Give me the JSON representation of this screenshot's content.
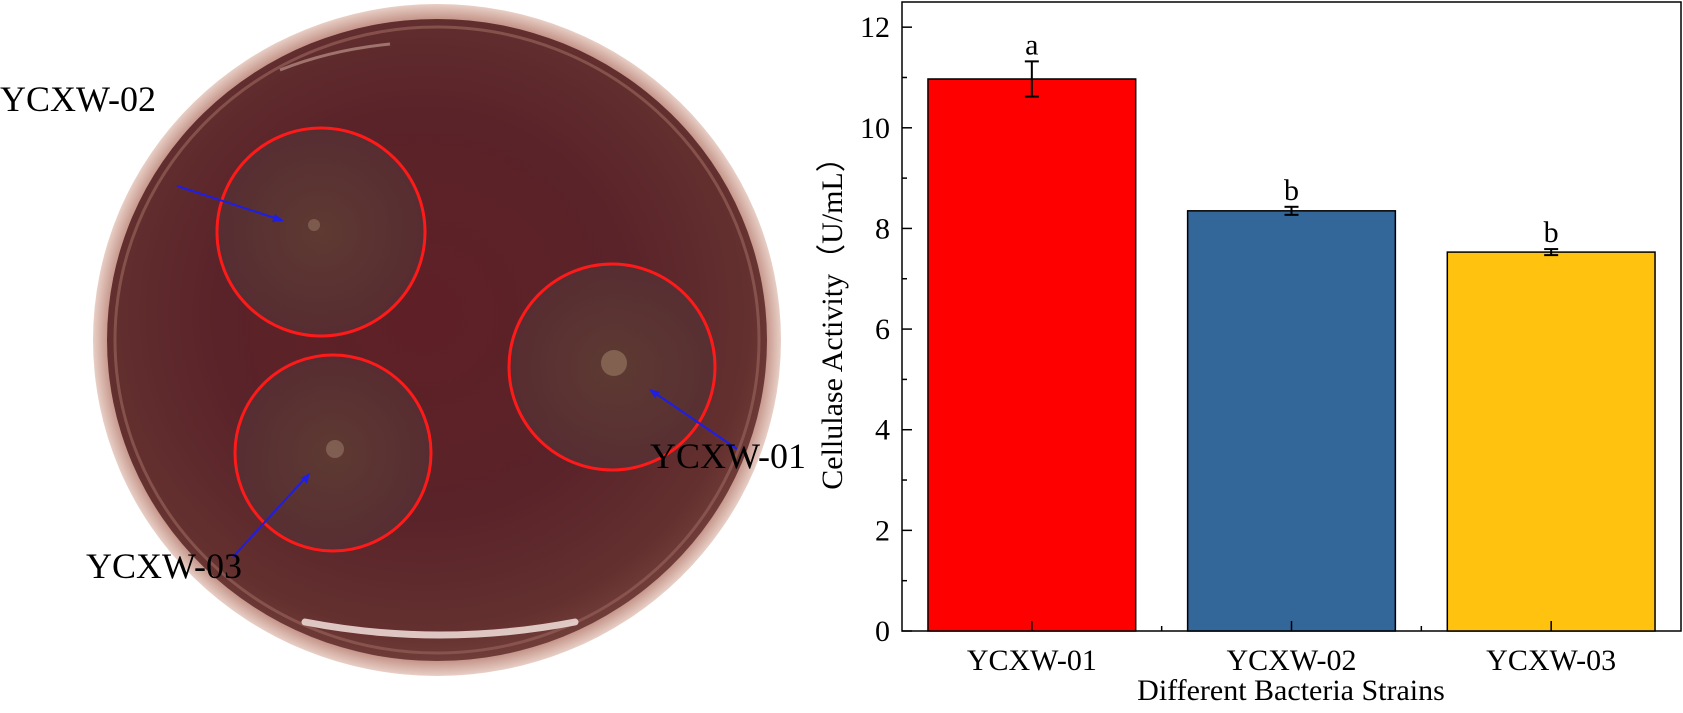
{
  "photo": {
    "labels": [
      {
        "text": "YCXW-02"
      },
      {
        "text": "YCXW-01"
      },
      {
        "text": "YCXW-03"
      }
    ],
    "colors": {
      "circle": "#ff1a1a",
      "arrow": "#1e1ee6",
      "dish": "#5a262b"
    }
  },
  "chart_data": {
    "type": "bar",
    "title": "",
    "xlabel": "Different Bacteria Strains",
    "ylabel": "Cellulase Activity（U/mL）",
    "ylim": [
      0,
      12.5
    ],
    "yticks": [
      0,
      2,
      4,
      6,
      8,
      10,
      12
    ],
    "categories": [
      "YCXW-01",
      "YCXW-02",
      "YCXW-03"
    ],
    "values": [
      10.97,
      8.35,
      7.53
    ],
    "errors": [
      0.35,
      0.08,
      0.06
    ],
    "significance": [
      "a",
      "b",
      "b"
    ],
    "colors": [
      "#ff0000",
      "#336699",
      "#ffc20e"
    ],
    "grid": false,
    "legend": "none"
  }
}
